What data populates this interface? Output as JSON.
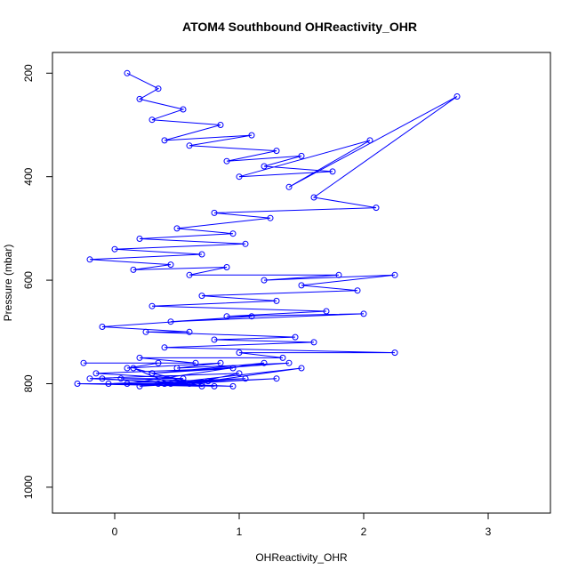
{
  "chart_data": {
    "type": "line",
    "title": "ATOM4 Southbound OHReactivity_OHR",
    "xlabel": "OHReactivity_OHR",
    "ylabel": "Pressure (mbar)",
    "xlim": [
      -0.5,
      3.5
    ],
    "ylim": [
      1050,
      160
    ],
    "y_reversed": true,
    "x_ticks": [
      0,
      1,
      2,
      3
    ],
    "x_tick_labels": [
      "0",
      "1",
      "2",
      "3"
    ],
    "y_ticks": [
      200,
      400,
      600,
      800,
      1000
    ],
    "y_tick_labels": [
      "200",
      "400",
      "600",
      "800",
      "1000"
    ],
    "grid": false,
    "legend": "none",
    "marker": "open-circle",
    "color": "#0000ff",
    "series": [
      {
        "x": [
          0.1,
          0.35,
          0.2,
          0.55,
          0.3,
          0.85,
          0.4,
          1.1,
          0.6,
          1.3,
          0.9,
          1.5,
          1.2,
          1.75,
          1.0,
          2.05,
          1.4,
          2.75,
          1.6,
          2.1,
          0.8,
          1.25,
          0.5,
          0.95,
          0.2,
          1.05,
          0.0,
          0.7,
          -0.2,
          0.45,
          0.15,
          0.9,
          0.6,
          1.8,
          1.2,
          2.25,
          1.5,
          1.95,
          0.7,
          1.3,
          0.3,
          1.7,
          0.9,
          2.0,
          0.45,
          1.1,
          -0.1,
          0.6,
          0.25,
          1.45,
          0.8,
          1.6,
          0.4,
          2.25,
          1.0,
          1.35,
          0.2,
          0.65,
          -0.25,
          0.35,
          0.1,
          0.85,
          0.5,
          1.4,
          0.3,
          0.95,
          -0.15,
          0.55,
          0.05,
          0.75,
          0.35,
          1.05,
          -0.05,
          0.95,
          0.4,
          1.3,
          0.2,
          1.5,
          0.6,
          1.0,
          -0.2,
          0.7,
          0.3,
          1.2,
          0.1,
          0.8,
          -0.1,
          0.45,
          0.15,
          0.7,
          -0.3,
          0.4
        ],
        "y": [
          200,
          230,
          250,
          270,
          290,
          300,
          330,
          320,
          340,
          350,
          370,
          360,
          380,
          390,
          400,
          330,
          420,
          245,
          440,
          460,
          470,
          480,
          500,
          510,
          520,
          530,
          540,
          550,
          560,
          570,
          580,
          575,
          590,
          590,
          600,
          590,
          610,
          620,
          630,
          640,
          650,
          660,
          670,
          665,
          680,
          670,
          690,
          700,
          700,
          710,
          715,
          720,
          730,
          740,
          740,
          750,
          750,
          760,
          760,
          760,
          770,
          760,
          770,
          760,
          780,
          770,
          780,
          790,
          790,
          795,
          800,
          790,
          800,
          805,
          800,
          790,
          805,
          770,
          800,
          780,
          790,
          800,
          780,
          760,
          800,
          805,
          790,
          800,
          770,
          805,
          800,
          800
        ]
      }
    ]
  }
}
